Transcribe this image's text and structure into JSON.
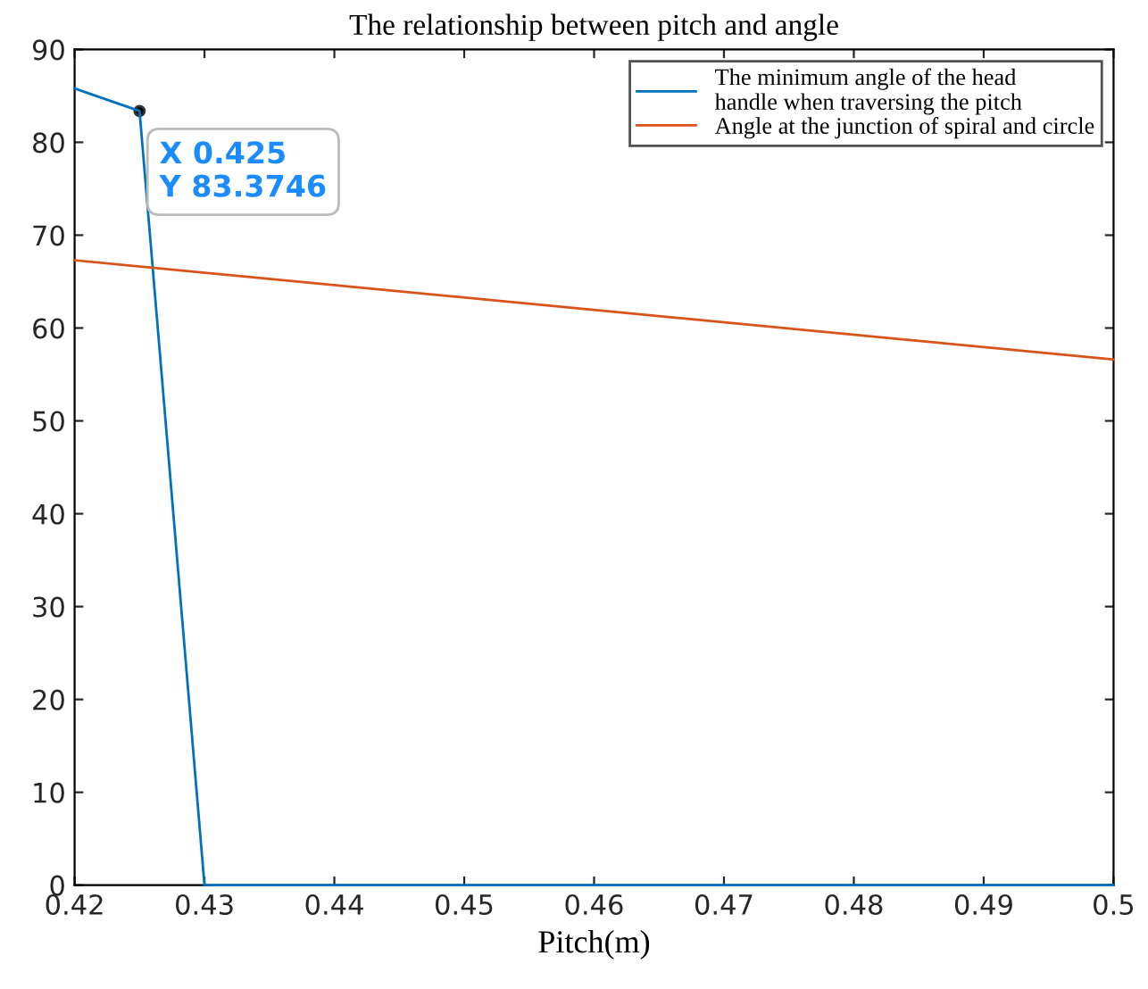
{
  "chart_data": {
    "type": "line",
    "title": "The relationship between pitch and angle",
    "xlabel": "Pitch(m)",
    "xlim": [
      0.42,
      0.5
    ],
    "xticks": [
      0.42,
      0.43,
      0.44,
      0.45,
      0.46,
      0.47,
      0.48,
      0.49,
      0.5
    ],
    "ylim": [
      0,
      90
    ],
    "yticks": [
      0,
      10,
      20,
      30,
      40,
      50,
      60,
      70,
      80,
      90
    ],
    "series": [
      {
        "name": "The minimum angle of the head\nhandle when traversing the pitch",
        "color": "#0072bd",
        "x": [
          0.42,
          0.425,
          0.43,
          0.5
        ],
        "values": [
          85.8,
          83.3746,
          0,
          0
        ]
      },
      {
        "name": "Angle at the junction of spiral and circle",
        "color": "#d95319",
        "x": [
          0.42,
          0.5
        ],
        "values": [
          67.3,
          56.6
        ]
      }
    ],
    "annotations": [
      {
        "text": "X 0.425\nY 83.3746",
        "x": 0.425,
        "y": 83.3746
      }
    ],
    "legend": "top right",
    "grid": false,
    "marker": "none",
    "line_style": "solid"
  }
}
